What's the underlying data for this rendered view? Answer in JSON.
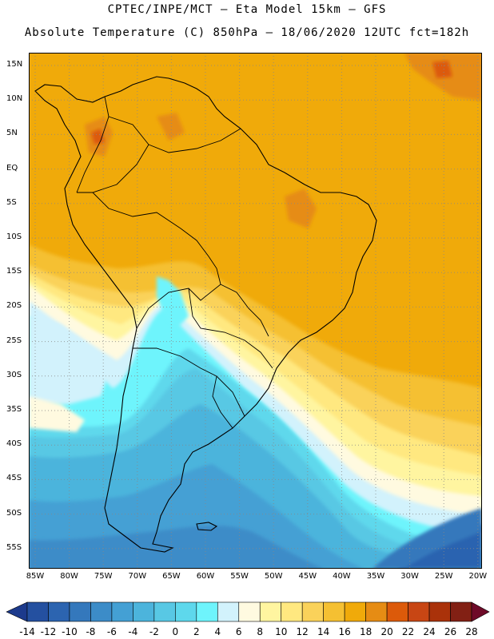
{
  "header": {
    "line1": "CPTEC/INPE/MCT –  Eta Model 15km – GFS",
    "line2": "Absolute Temperature (C) 850hPa – 18/06/2020 12UTC fct=182h"
  },
  "map": {
    "lat_labels": [
      "15N",
      "10N",
      "5N",
      "EQ",
      "5S",
      "10S",
      "15S",
      "20S",
      "25S",
      "30S",
      "35S",
      "40S",
      "45S",
      "50S",
      "55S"
    ],
    "lon_labels": [
      "85W",
      "80W",
      "75W",
      "70W",
      "65W",
      "60W",
      "55W",
      "50W",
      "45W",
      "40W",
      "35W",
      "30W",
      "25W",
      "20W"
    ],
    "grid": "dotted",
    "outline_color": "#000000"
  },
  "colorbar": {
    "levels": [
      "-14",
      "-12",
      "-10",
      "-8",
      "-6",
      "-4",
      "-2",
      "0",
      "2",
      "4",
      "6",
      "8",
      "10",
      "12",
      "14",
      "16",
      "18",
      "20",
      "22",
      "24",
      "26",
      "28"
    ],
    "colors": [
      "#1c3a8c",
      "#2450a0",
      "#2c64b0",
      "#3478bc",
      "#3c8cc8",
      "#44a0d4",
      "#4cb4dc",
      "#58c8e4",
      "#5ed8ec",
      "#6ef4fc",
      "#d2f2fc",
      "#fffae0",
      "#fff5a0",
      "#ffe880",
      "#fad25a",
      "#f5c032",
      "#f0aa0a",
      "#e68c14",
      "#dc5a0a",
      "#c84614",
      "#aa320a",
      "#822014",
      "#6e0a28"
    ]
  }
}
